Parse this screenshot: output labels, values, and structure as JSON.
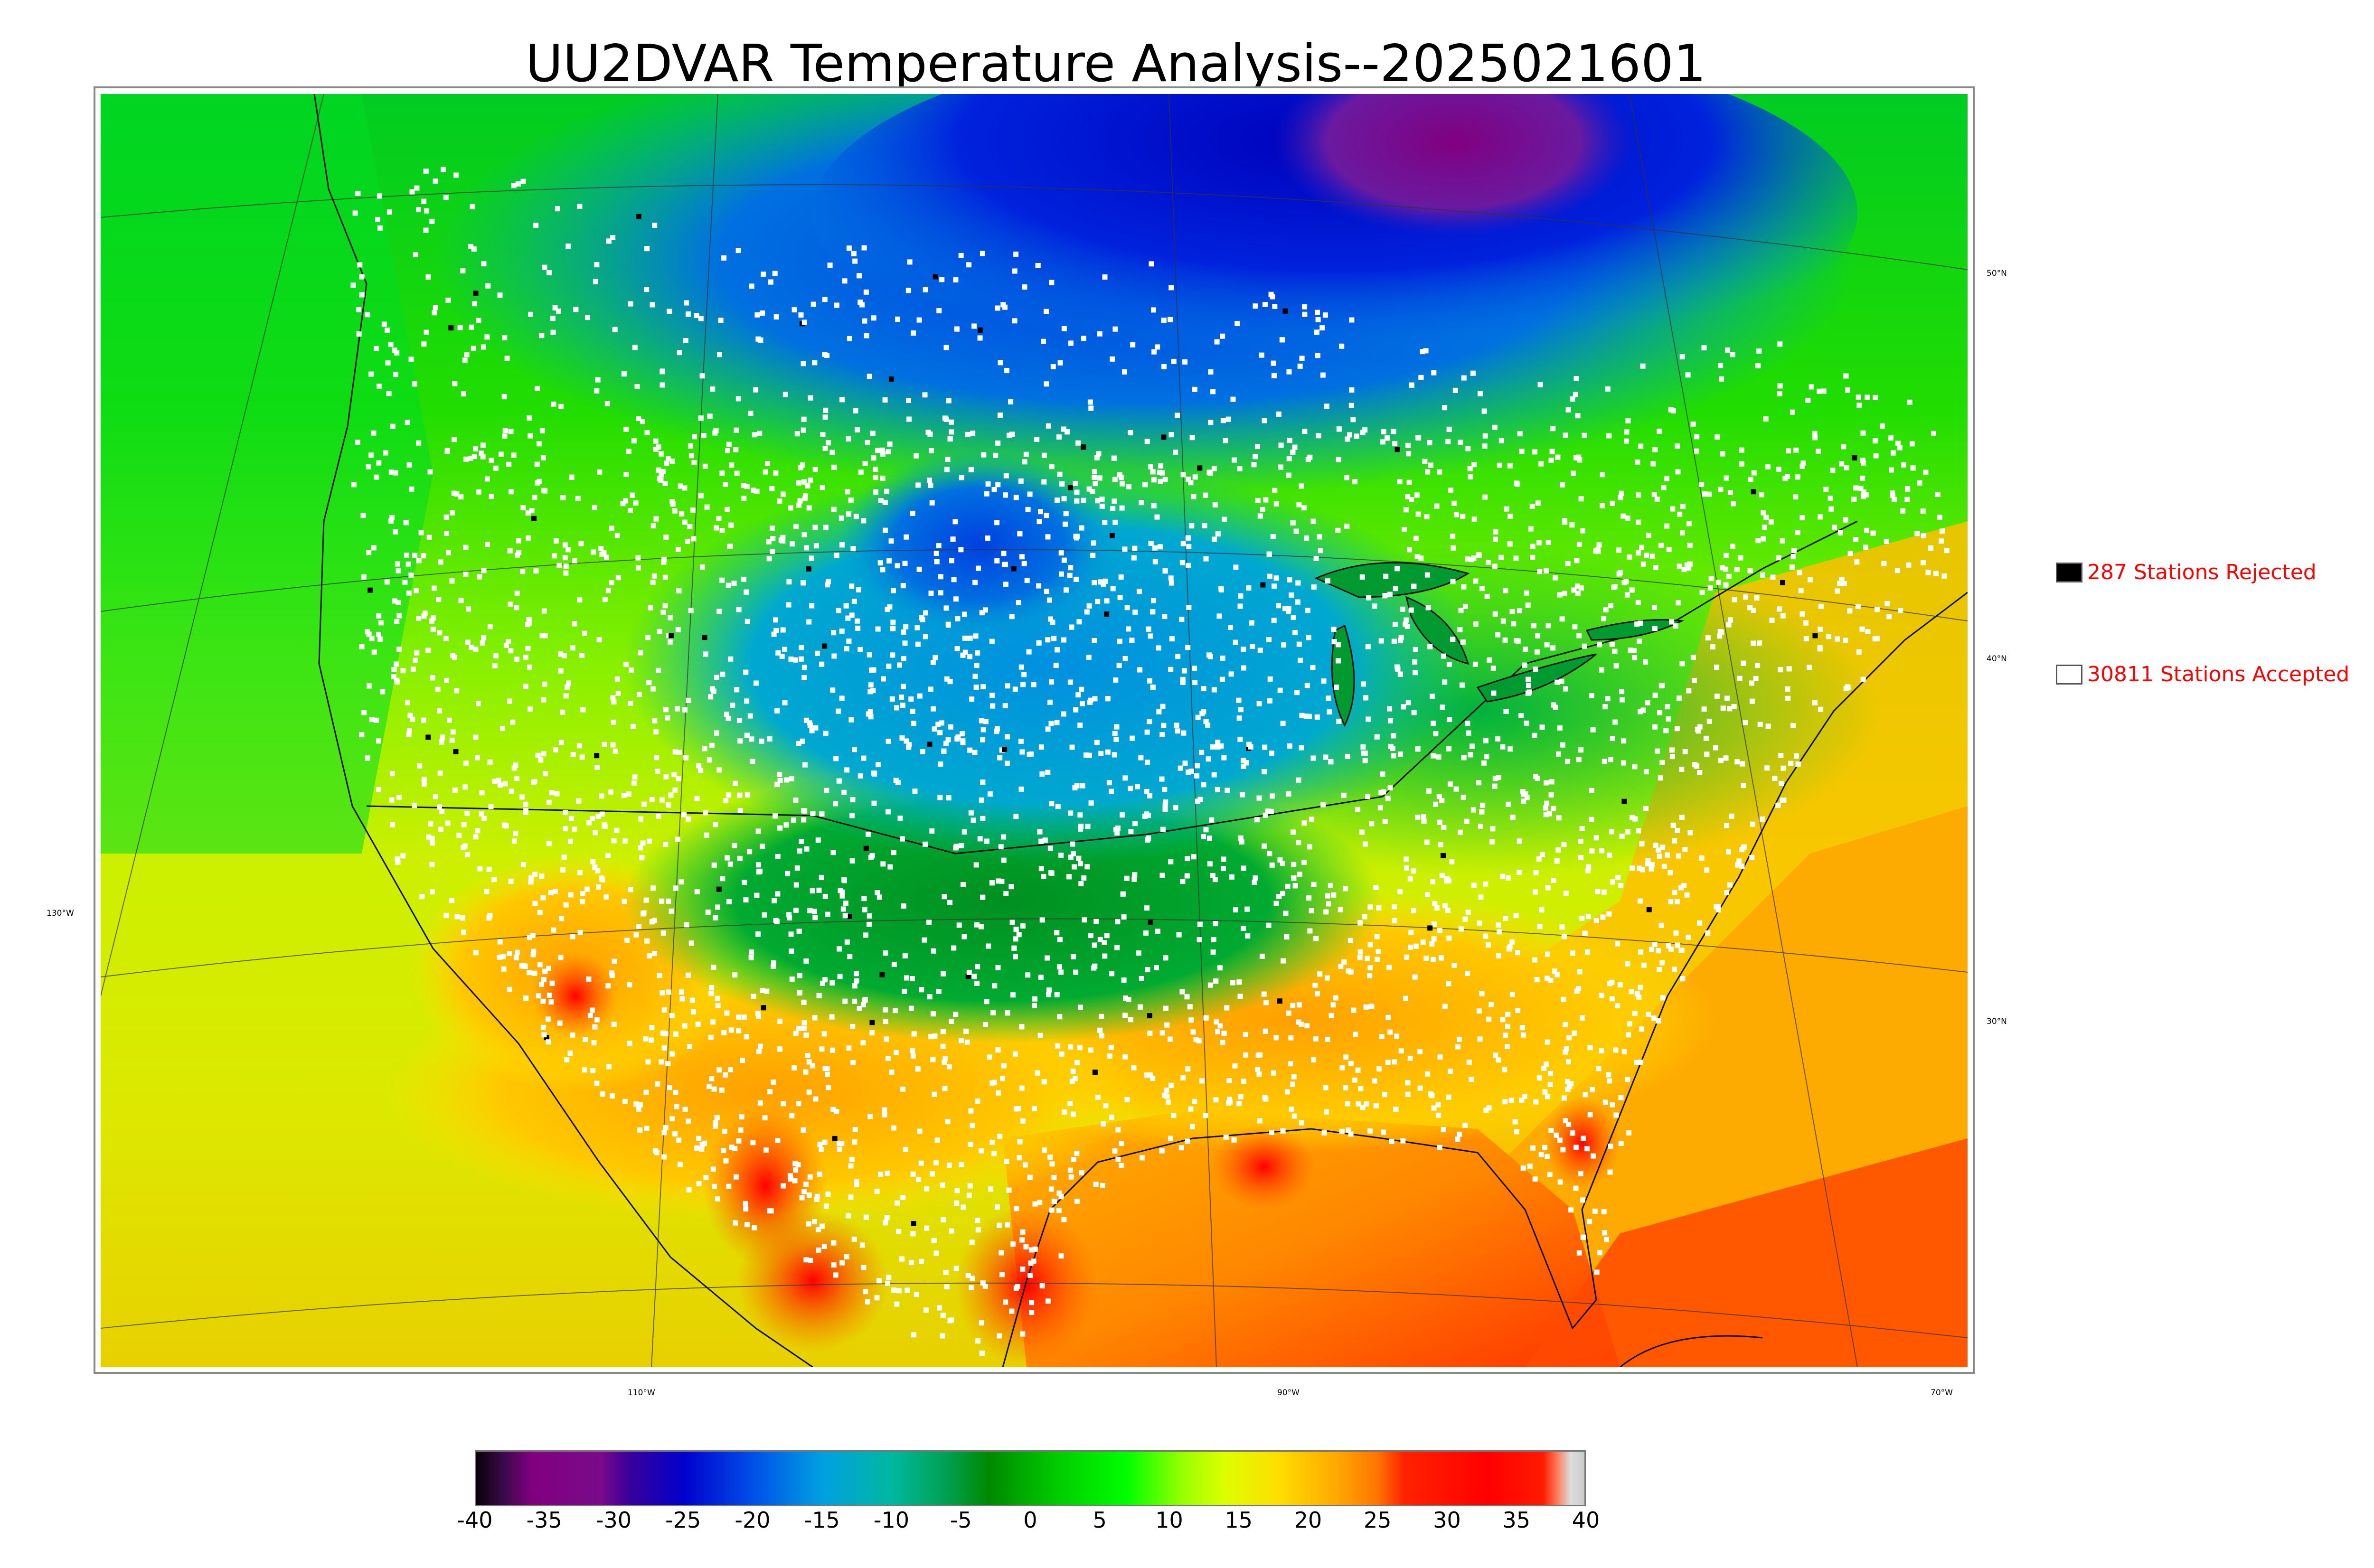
{
  "title": "UU2DVAR Temperature Analysis--2025021601",
  "map": {
    "lat_labels": [
      "50°N",
      "40°N",
      "30°N"
    ],
    "lon_labels": [
      "130°W",
      "110°W",
      "90°W",
      "70°W"
    ]
  },
  "legend": {
    "rejected": {
      "label": "287 Stations Rejected",
      "count": 287,
      "swatch_color": "#000000"
    },
    "accepted": {
      "label": "30811 Stations Accepted",
      "count": 30811,
      "swatch_color": "#ffffff"
    },
    "text_color": "#ff0000"
  },
  "colorbar": {
    "ticks": [
      "-40",
      "-35",
      "-30",
      "-25",
      "-20",
      "-15",
      "-10",
      "-5",
      "0",
      "5",
      "10",
      "15",
      "20",
      "25",
      "30",
      "35",
      "40"
    ],
    "range": [
      -40,
      40
    ],
    "stops": [
      {
        "value": -40,
        "color": "#0a0008"
      },
      {
        "value": -38,
        "color": "#3a0a4a"
      },
      {
        "value": -36,
        "color": "#800080"
      },
      {
        "value": -31,
        "color": "#7a0a8a"
      },
      {
        "value": -29,
        "color": "#3a009a"
      },
      {
        "value": -25,
        "color": "#0000cc"
      },
      {
        "value": -20,
        "color": "#0050e8"
      },
      {
        "value": -15,
        "color": "#00a0e0"
      },
      {
        "value": -10,
        "color": "#00b8a0"
      },
      {
        "value": -6,
        "color": "#00a050"
      },
      {
        "value": -3,
        "color": "#008800"
      },
      {
        "value": 2,
        "color": "#00cc00"
      },
      {
        "value": 7,
        "color": "#00ff00"
      },
      {
        "value": 11,
        "color": "#99ff00"
      },
      {
        "value": 14,
        "color": "#ddff00"
      },
      {
        "value": 18,
        "color": "#ffdd00"
      },
      {
        "value": 22,
        "color": "#ffaa00"
      },
      {
        "value": 25,
        "color": "#ff7700"
      },
      {
        "value": 27,
        "color": "#ff2200"
      },
      {
        "value": 33,
        "color": "#ff0000"
      },
      {
        "value": 37,
        "color": "#ff1a00"
      },
      {
        "value": 38,
        "color": "#ff7755"
      },
      {
        "value": 39,
        "color": "#dddddd"
      },
      {
        "value": 40,
        "color": "#cccccc"
      }
    ]
  }
}
